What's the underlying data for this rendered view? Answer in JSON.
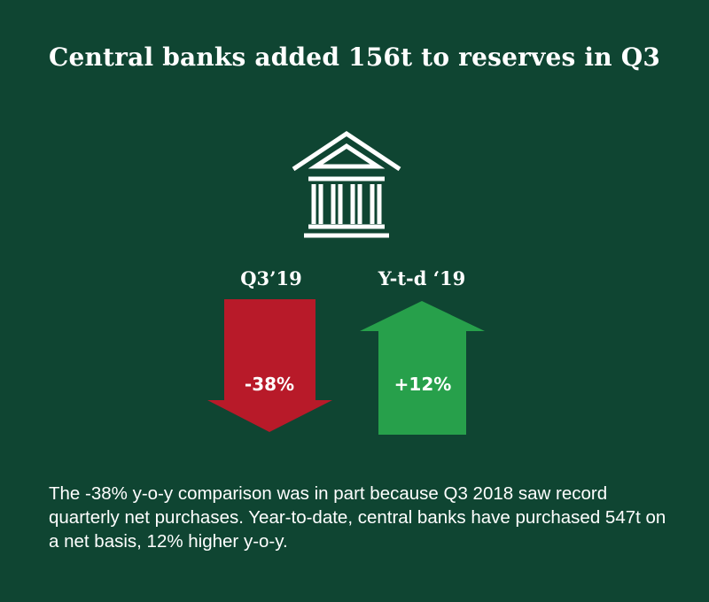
{
  "title": "Central banks added 156t to reserves in Q3",
  "icon": "bank-building-icon",
  "indicators": [
    {
      "label": "Q3’19",
      "value": "-38%",
      "direction": "down",
      "color": "#b81a29"
    },
    {
      "label": "Y-t-d ‘19",
      "value": "+12%",
      "direction": "up",
      "color": "#27a04b"
    }
  ],
  "description": "The -38% y-o-y comparison was in part because Q3 2018 saw record quarterly net purchases. Year-to-date, central banks have purchased 547t on a net basis, 12% higher y-o-y.",
  "colors": {
    "background": "#0f4532",
    "down": "#b81a29",
    "up": "#27a04b"
  }
}
